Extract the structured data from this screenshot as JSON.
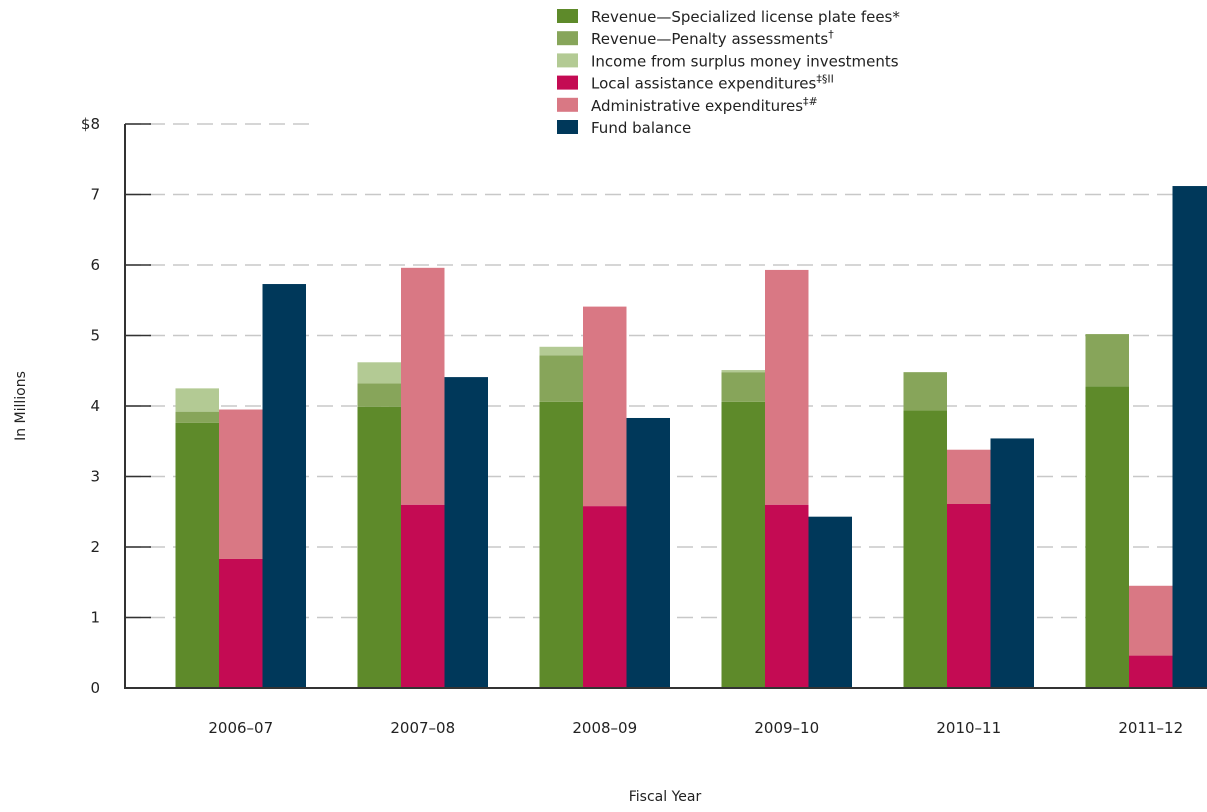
{
  "chart_data": {
    "type": "bar",
    "title": "",
    "xlabel": "Fiscal Year",
    "ylabel": "In Millions",
    "ylim": [
      0,
      8
    ],
    "yticks": [
      {
        "value": 0,
        "label": "0"
      },
      {
        "value": 1,
        "label": "1"
      },
      {
        "value": 2,
        "label": "2"
      },
      {
        "value": 3,
        "label": "3"
      },
      {
        "value": 4,
        "label": "4"
      },
      {
        "value": 5,
        "label": "5"
      },
      {
        "value": 6,
        "label": "6"
      },
      {
        "value": 7,
        "label": "7"
      },
      {
        "value": 8,
        "label": "$8"
      }
    ],
    "grid": true,
    "legend_position": "top-center",
    "categories": [
      "2006–07",
      "2007–08",
      "2008–09",
      "2009–10",
      "2010–11",
      "2011–12"
    ],
    "series": [
      {
        "name": "Revenue—Specialized license plate fees",
        "marker": "*",
        "stack": "revenue",
        "color": "#5e8a2a",
        "values": [
          3.76,
          3.99,
          4.06,
          4.06,
          3.94,
          4.28
        ]
      },
      {
        "name": "Revenue—Penalty assessments",
        "marker": "†",
        "stack": "revenue",
        "color": "#87a55a",
        "values": [
          0.16,
          0.33,
          0.66,
          0.42,
          0.54,
          0.74
        ]
      },
      {
        "name": "Income from surplus money investments",
        "marker": "",
        "stack": "revenue",
        "color": "#b3ca94",
        "values": [
          0.33,
          0.3,
          0.12,
          0.03,
          0.0,
          0.0
        ]
      },
      {
        "name": "Local assistance expenditures",
        "marker": "‡§II",
        "stack": "expenditures",
        "color": "#c40b53",
        "values": [
          1.83,
          2.6,
          2.58,
          2.6,
          2.61,
          0.46
        ]
      },
      {
        "name": "Administrative expenditures",
        "marker": "‡#",
        "stack": "expenditures",
        "color": "#d97884",
        "values": [
          2.12,
          3.36,
          2.83,
          3.33,
          0.77,
          0.99
        ]
      },
      {
        "name": "Fund balance",
        "marker": "",
        "stack": "balance",
        "color": "#00385a",
        "values": [
          5.73,
          4.41,
          3.83,
          2.43,
          3.54,
          7.12
        ]
      }
    ]
  }
}
